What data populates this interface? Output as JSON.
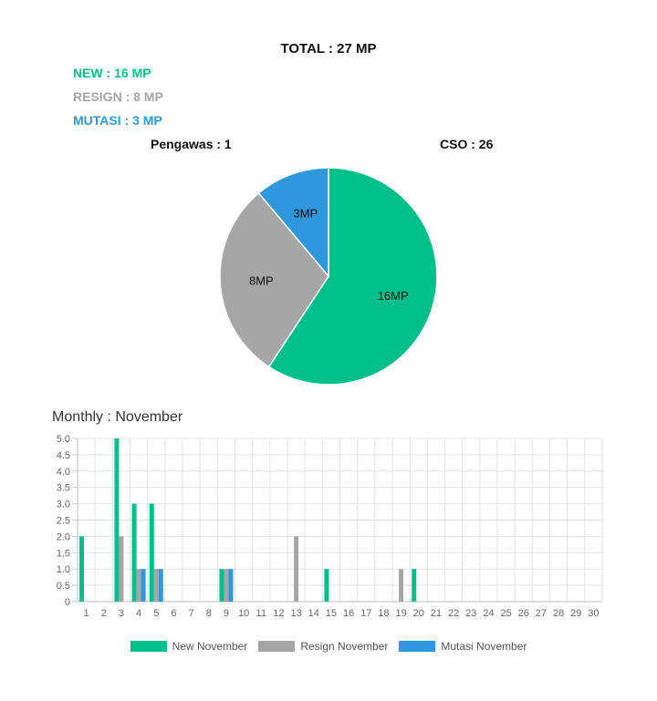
{
  "summary": {
    "total": "TOTAL : 27 MP",
    "new": "NEW : 16 MP",
    "resign": "RESIGN : 8 MP",
    "mutasi": "MUTASI : 3 MP",
    "pengawas": "Pengawas : 1",
    "cso": "CSO : 26"
  },
  "colors": {
    "new": "#00bf8a",
    "resign": "#a6a6a6",
    "mutasi": "#2f98dc"
  },
  "monthly_title": "Monthly : November",
  "chart_data": [
    {
      "type": "pie",
      "slices": [
        {
          "label": "16MP",
          "value": 16,
          "color": "#00bf8a"
        },
        {
          "label": "8MP",
          "value": 8,
          "color": "#a6a6a6"
        },
        {
          "label": "3MP",
          "value": 3,
          "color": "#2f98dc"
        }
      ]
    },
    {
      "type": "bar",
      "categories": [
        "1",
        "2",
        "3",
        "4",
        "5",
        "6",
        "7",
        "8",
        "9",
        "10",
        "11",
        "12",
        "13",
        "14",
        "15",
        "16",
        "17",
        "18",
        "19",
        "20",
        "21",
        "22",
        "23",
        "24",
        "25",
        "26",
        "27",
        "28",
        "29",
        "30"
      ],
      "series": [
        {
          "name": "New November",
          "color": "#00bf8a",
          "values": [
            2,
            0,
            5,
            3,
            3,
            0,
            0,
            0,
            1,
            0,
            0,
            0,
            0,
            0,
            1,
            0,
            0,
            0,
            0,
            1,
            0,
            0,
            0,
            0,
            0,
            0,
            0,
            0,
            0,
            0
          ]
        },
        {
          "name": "Resign November",
          "color": "#a6a6a6",
          "values": [
            0,
            0,
            2,
            1,
            1,
            0,
            0,
            0,
            1,
            0,
            0,
            0,
            2,
            0,
            0,
            0,
            0,
            0,
            1,
            0,
            0,
            0,
            0,
            0,
            0,
            0,
            0,
            0,
            0,
            0
          ]
        },
        {
          "name": "Mutasi November",
          "color": "#2f98dc",
          "values": [
            0,
            0,
            0,
            1,
            1,
            0,
            0,
            0,
            1,
            0,
            0,
            0,
            0,
            0,
            0,
            0,
            0,
            0,
            0,
            0,
            0,
            0,
            0,
            0,
            0,
            0,
            0,
            0,
            0,
            0
          ]
        }
      ],
      "yticks": [
        "0",
        "0.5",
        "1.0",
        "1.5",
        "2.0",
        "2.5",
        "3.0",
        "3.5",
        "4.0",
        "4.5",
        "5.0"
      ],
      "ylim": [
        0,
        5
      ],
      "grid": true,
      "legend": "bottom"
    }
  ]
}
